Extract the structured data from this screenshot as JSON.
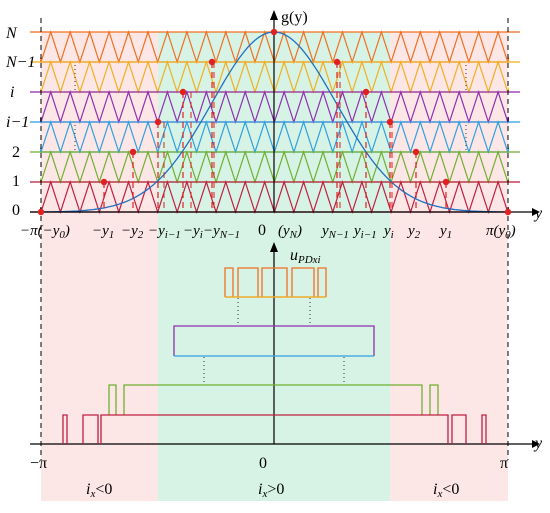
{
  "top_axes": {
    "y_axis_label": "g(y)",
    "x_axis_label": "y"
  },
  "bottom_axes": {
    "y_axis_label_main": "u",
    "y_axis_label_sub": "PDxi",
    "x_axis_label": "y"
  },
  "level_labels": [
    "0",
    "1",
    "2",
    "i−1",
    "i",
    "N−1",
    "N"
  ],
  "top_x_tick_labels": {
    "neg_pi": "−π(−y",
    "neg_pi_sub": "0",
    "neg_pi_close": ")",
    "neg_y1": "−y",
    "neg_y1_sub": "1",
    "neg_y2": "−y",
    "neg_y2_sub": "2",
    "neg_yim1": "−y",
    "neg_yim1_sub": "i−1",
    "neg_yi": "−y",
    "neg_yi_sub": "i",
    "neg_yNm1": "−y",
    "neg_yNm1_sub": "N−1",
    "zero": "0",
    "yN": "(y",
    "yN_sub": "N",
    "yN_close": ")",
    "yNm1": "y",
    "yNm1_sub": "N−1",
    "yim1": "y",
    "yim1_sub": "i−1",
    "yi": "y",
    "yi_sub": "i",
    "y2": "y",
    "y2_sub": "2",
    "y1": "y",
    "y1_sub": "1",
    "pi": "π(y",
    "pi_sub": "0",
    "pi_close": ")"
  },
  "bottom_x_tick_labels": {
    "neg_pi": "−π",
    "zero": "0",
    "pi": "π"
  },
  "region_labels": {
    "left": "i",
    "left_sub": "x",
    "left_rel": "<0",
    "center": "i",
    "center_sub": "x",
    "center_rel": ">0",
    "right": "i",
    "right_sub": "x",
    "right_rel": "<0"
  },
  "colors": {
    "carrier_N": "#f07020",
    "carrier_Nm1": "#f0b020",
    "carrier_i": "#9030b0",
    "carrier_im1": "#30a0e0",
    "carrier_2": "#70b030",
    "carrier_1": "#c02040",
    "carrier_0": "#c02040",
    "gaussian": "#2070c0",
    "marker": "#e02020",
    "region_negative": "#fde6e6",
    "region_positive": "#d6f3e6"
  }
}
